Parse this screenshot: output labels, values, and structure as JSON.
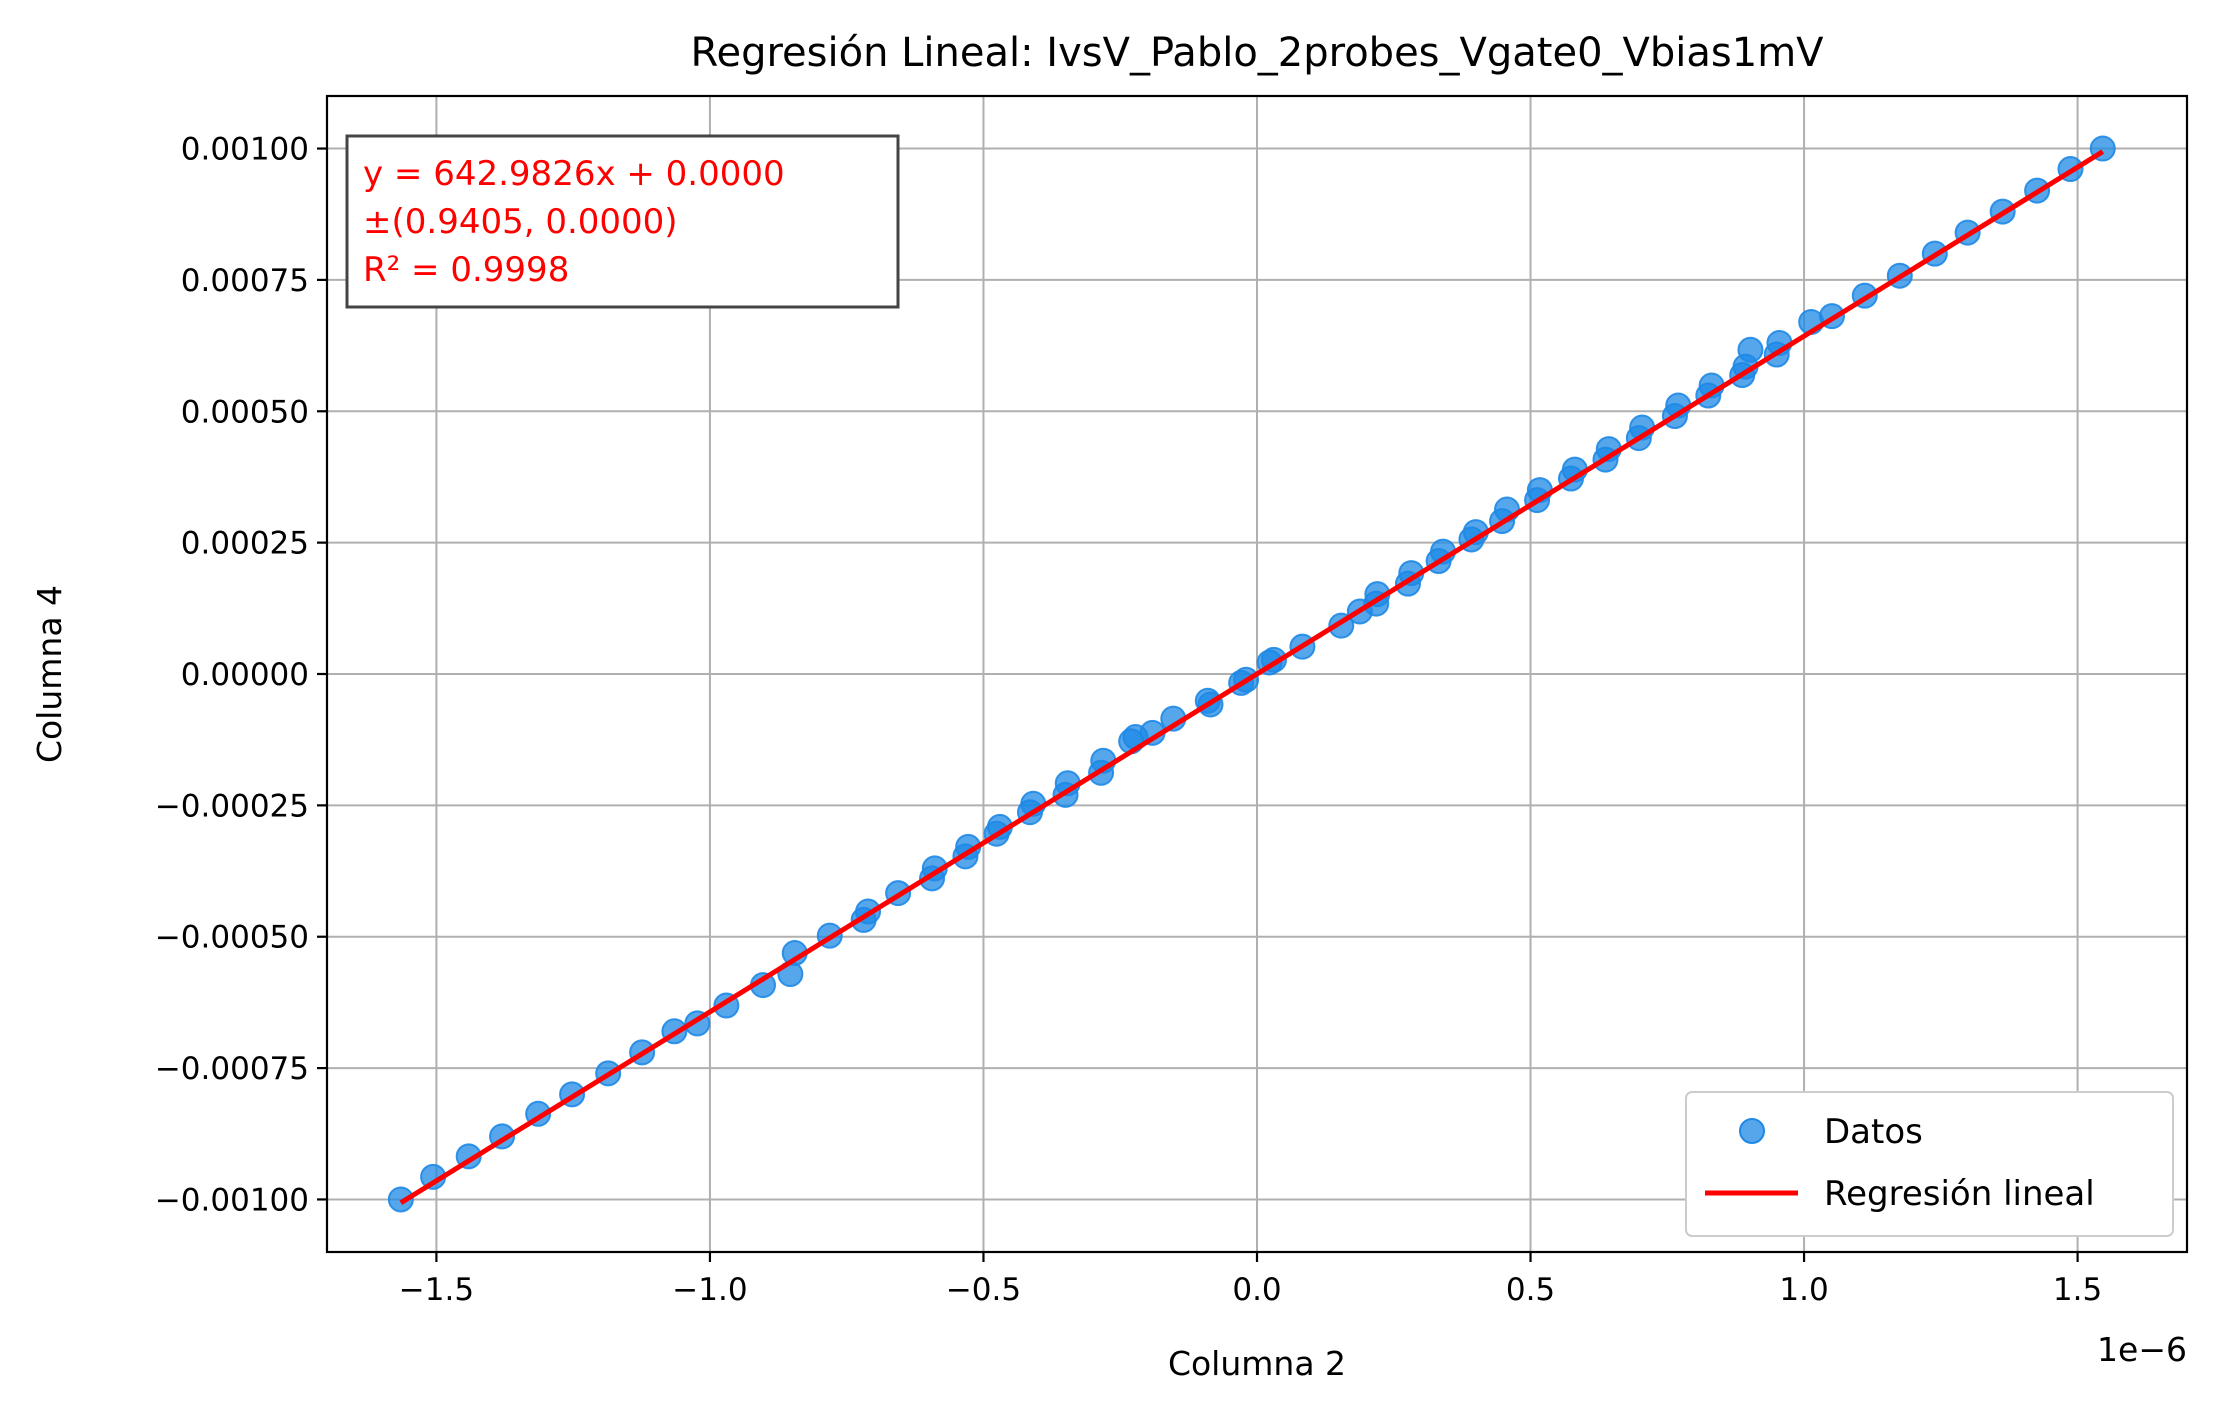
{
  "chart_data": {
    "type": "scatter",
    "title": "Regresión Lineal: IvsV_Pablo_2probes_Vgate0_Vbias1mV",
    "xlabel": "Columna 2",
    "ylabel": "Columna 4",
    "x_offset_label": "1e−6",
    "x_scale": 1e-06,
    "xlim": [
      -1.7,
      1.7
    ],
    "ylim": [
      -0.0011,
      0.0011
    ],
    "x_ticks": [
      -1.5,
      -1.0,
      -0.5,
      0.0,
      0.5,
      1.0,
      1.5
    ],
    "x_tick_labels": [
      "−1.5",
      "−1.0",
      "−0.5",
      "0.0",
      "0.5",
      "1.0",
      "1.5"
    ],
    "y_ticks": [
      0.001,
      0.00075,
      0.0005,
      0.00025,
      0.0,
      -0.00025,
      -0.0005,
      -0.00075,
      -0.001
    ],
    "y_tick_labels": [
      "0.00100",
      "0.00075",
      "0.00050",
      "0.00025",
      "0.00000",
      "−0.00025",
      "−0.00050",
      "−0.00075",
      "−0.00100"
    ],
    "grid": true,
    "legend_position": "lower-right",
    "annotation": {
      "lines": [
        "y = 642.9826x + 0.0000",
        "±(0.9405, 0.0000)",
        "R² = 0.9998"
      ],
      "color": "#ff0000",
      "position": "upper-left"
    },
    "series": [
      {
        "name": "Datos",
        "kind": "scatter",
        "color": "#1e88e5",
        "x": [
          -1.565,
          -1.506,
          -1.441,
          -1.38,
          -1.314,
          -1.252,
          -1.186,
          -1.124,
          -1.065,
          -1.023,
          -0.97,
          -0.903,
          -0.853,
          -0.845,
          -0.781,
          -0.719,
          -0.711,
          -0.656,
          -0.594,
          -0.589,
          -0.533,
          -0.528,
          -0.476,
          -0.47,
          -0.415,
          -0.409,
          -0.35,
          -0.346,
          -0.285,
          -0.281,
          -0.23,
          -0.222,
          -0.191,
          -0.153,
          -0.09,
          -0.085,
          -0.029,
          -0.02,
          0.023,
          0.031,
          0.083,
          0.154,
          0.188,
          0.218,
          0.22,
          0.276,
          0.282,
          0.332,
          0.34,
          0.392,
          0.4,
          0.448,
          0.457,
          0.512,
          0.517,
          0.574,
          0.581,
          0.637,
          0.643,
          0.698,
          0.704,
          0.764,
          0.77,
          0.825,
          0.831,
          0.887,
          0.893,
          0.902,
          0.95,
          0.955,
          1.013,
          1.051,
          1.111,
          1.175,
          1.239,
          1.299,
          1.363,
          1.426,
          1.487,
          1.546
        ],
        "y": [
          -0.001,
          -0.000957,
          -0.000918,
          -0.00088,
          -0.000837,
          -0.0008,
          -0.00076,
          -0.00072,
          -0.00068,
          -0.000665,
          -0.000631,
          -0.000592,
          -0.000571,
          -0.000531,
          -0.000498,
          -0.000468,
          -0.000452,
          -0.000417,
          -0.000389,
          -0.00037,
          -0.000347,
          -0.000329,
          -0.000304,
          -0.000291,
          -0.000263,
          -0.000247,
          -0.00023,
          -0.000208,
          -0.000188,
          -0.000165,
          -0.000128,
          -0.00012,
          -0.000112,
          -8.5e-05,
          -5.1e-05,
          -5.8e-05,
          -1.7e-05,
          -1.1e-05,
          2.2e-05,
          2.7e-05,
          5.2e-05,
          9.2e-05,
          0.000119,
          0.000134,
          0.000152,
          0.000172,
          0.000192,
          0.000215,
          0.000233,
          0.000256,
          0.00027,
          0.000291,
          0.000313,
          0.000331,
          0.00035,
          0.000372,
          0.000389,
          0.000408,
          0.000428,
          0.000449,
          0.000469,
          0.000491,
          0.000511,
          0.00053,
          0.000549,
          0.000569,
          0.000585,
          0.000617,
          0.000608,
          0.00063,
          0.00067,
          0.000681,
          0.00072,
          0.000758,
          0.0008,
          0.00084,
          0.00088,
          0.00092,
          0.000961,
          0.001
        ]
      },
      {
        "name": "Regresión lineal",
        "kind": "line",
        "color": "#ff0000",
        "slope": 642.9826,
        "intercept": 0.0,
        "x_range": [
          -1.565,
          1.546
        ]
      }
    ]
  }
}
